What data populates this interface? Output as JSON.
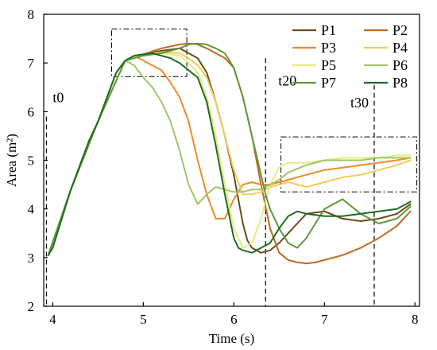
{
  "chart_data": {
    "type": "line",
    "xlabel": "Time (s)",
    "ylabel": "Area (m²)",
    "xlim": [
      3.9,
      8.05
    ],
    "ylim": [
      2,
      8
    ],
    "x_ticks": [
      4,
      5,
      6,
      7,
      8
    ],
    "y_ticks": [
      2,
      3,
      4,
      5,
      6,
      7,
      8
    ],
    "grid": false,
    "legend_position": "top-right",
    "series": [
      {
        "name": "P1",
        "color": "#6B4A1C",
        "x": [
          3.95,
          4.2,
          4.5,
          4.8,
          5.0,
          5.2,
          5.4,
          5.5,
          5.6,
          5.7,
          5.8,
          5.9,
          6.0,
          6.05,
          6.1,
          6.15,
          6.2,
          6.3,
          6.4,
          6.5,
          6.6,
          6.7,
          6.8,
          7.0,
          7.2,
          7.4,
          7.6,
          7.8,
          7.95
        ],
        "y": [
          3.05,
          4.4,
          5.8,
          7.05,
          7.18,
          7.25,
          7.3,
          7.2,
          7.1,
          6.8,
          6.2,
          5.5,
          4.7,
          4.2,
          3.7,
          3.35,
          3.2,
          3.1,
          3.15,
          3.3,
          3.5,
          3.7,
          3.9,
          3.95,
          3.8,
          3.75,
          3.8,
          3.9,
          4.1
        ]
      },
      {
        "name": "P2",
        "color": "#C06A20",
        "x": [
          3.95,
          4.2,
          4.5,
          4.8,
          5.0,
          5.2,
          5.4,
          5.5,
          5.6,
          5.7,
          5.8,
          5.9,
          6.0,
          6.1,
          6.2,
          6.3,
          6.4,
          6.5,
          6.6,
          6.7,
          6.8,
          6.9,
          7.0,
          7.2,
          7.4,
          7.6,
          7.8,
          7.95
        ],
        "y": [
          3.05,
          4.4,
          5.8,
          7.05,
          7.18,
          7.3,
          7.38,
          7.4,
          7.38,
          7.3,
          7.2,
          7.1,
          6.9,
          6.3,
          5.5,
          4.5,
          3.6,
          3.1,
          2.95,
          2.9,
          2.88,
          2.9,
          2.95,
          3.05,
          3.2,
          3.4,
          3.65,
          3.95
        ]
      },
      {
        "name": "P3",
        "color": "#F08A2A",
        "x": [
          3.95,
          4.2,
          4.5,
          4.8,
          4.9,
          5.0,
          5.1,
          5.2,
          5.3,
          5.4,
          5.5,
          5.6,
          5.7,
          5.8,
          5.9,
          6.0,
          6.1,
          6.2,
          6.3,
          6.4,
          6.5,
          6.6,
          6.7,
          6.8,
          7.0,
          7.2,
          7.4,
          7.6,
          7.8,
          7.95
        ],
        "y": [
          3.05,
          4.4,
          5.8,
          7.05,
          7.15,
          7.05,
          6.95,
          6.85,
          6.6,
          6.3,
          5.8,
          5.0,
          4.3,
          3.8,
          3.8,
          4.2,
          4.5,
          4.55,
          4.5,
          4.5,
          4.55,
          4.6,
          4.65,
          4.7,
          4.8,
          4.85,
          4.9,
          4.95,
          5.0,
          5.05
        ]
      },
      {
        "name": "P4",
        "color": "#F0CD5A",
        "x": [
          3.95,
          4.2,
          4.5,
          4.8,
          5.0,
          5.2,
          5.4,
          5.5,
          5.6,
          5.7,
          5.8,
          5.9,
          6.0,
          6.1,
          6.2,
          6.3,
          6.4,
          6.5,
          6.6,
          6.7,
          6.8,
          6.9,
          7.0,
          7.2,
          7.4,
          7.6,
          7.8,
          7.95
        ],
        "y": [
          3.05,
          4.4,
          5.8,
          7.05,
          7.18,
          7.22,
          7.2,
          7.1,
          6.95,
          6.7,
          6.2,
          5.5,
          4.8,
          4.3,
          4.3,
          4.35,
          4.45,
          4.5,
          4.55,
          4.5,
          4.45,
          4.5,
          4.55,
          4.65,
          4.7,
          4.8,
          4.9,
          5.0
        ]
      },
      {
        "name": "P5",
        "color": "#E7EA7E",
        "x": [
          3.95,
          4.2,
          4.5,
          4.8,
          5.0,
          5.2,
          5.4,
          5.5,
          5.6,
          5.7,
          5.8,
          5.9,
          6.0,
          6.1,
          6.2,
          6.3,
          6.4,
          6.5,
          6.6,
          6.7,
          6.8,
          7.0,
          7.2,
          7.4,
          7.6,
          7.8,
          7.95
        ],
        "y": [
          3.05,
          4.4,
          5.8,
          7.05,
          7.18,
          7.2,
          7.15,
          7.0,
          6.8,
          6.3,
          5.5,
          4.5,
          3.6,
          3.2,
          3.3,
          3.8,
          4.5,
          4.85,
          4.95,
          4.95,
          4.95,
          5.0,
          5.05,
          5.05,
          5.05,
          5.1,
          5.1
        ]
      },
      {
        "name": "P6",
        "color": "#A2C569",
        "x": [
          3.95,
          4.2,
          4.5,
          4.7,
          4.8,
          4.9,
          5.0,
          5.1,
          5.2,
          5.3,
          5.4,
          5.5,
          5.6,
          5.7,
          5.8,
          5.9,
          6.0,
          6.1,
          6.2,
          6.3,
          6.4,
          6.5,
          6.6,
          6.8,
          7.0,
          7.2,
          7.4,
          7.6,
          7.8,
          7.95
        ],
        "y": [
          3.05,
          4.4,
          5.8,
          6.8,
          7.05,
          6.95,
          6.7,
          6.5,
          6.2,
          5.8,
          5.2,
          4.5,
          4.1,
          4.3,
          4.45,
          4.4,
          4.35,
          4.35,
          4.4,
          4.4,
          4.5,
          4.6,
          4.75,
          4.9,
          5.0,
          5.0,
          5.0,
          5.05,
          5.05,
          5.05
        ]
      },
      {
        "name": "P7",
        "color": "#5E9A38",
        "x": [
          3.95,
          4.2,
          4.5,
          4.8,
          5.0,
          5.2,
          5.3,
          5.4,
          5.5,
          5.6,
          5.7,
          5.8,
          5.9,
          6.0,
          6.1,
          6.2,
          6.3,
          6.35,
          6.4,
          6.5,
          6.6,
          6.7,
          6.8,
          7.0,
          7.2,
          7.4,
          7.6,
          7.8,
          7.95
        ],
        "y": [
          3.05,
          4.4,
          5.8,
          7.05,
          7.15,
          7.2,
          7.25,
          7.3,
          7.38,
          7.4,
          7.38,
          7.3,
          7.2,
          6.9,
          6.3,
          5.5,
          4.7,
          4.3,
          4.0,
          3.6,
          3.3,
          3.2,
          3.4,
          4.0,
          4.2,
          3.9,
          3.7,
          3.8,
          4.05
        ]
      },
      {
        "name": "P8",
        "color": "#1F6B25",
        "x": [
          3.95,
          4.0,
          4.1,
          4.2,
          4.3,
          4.4,
          4.5,
          4.6,
          4.7,
          4.8,
          4.9,
          5.0,
          5.1,
          5.2,
          5.3,
          5.4,
          5.5,
          5.6,
          5.7,
          5.8,
          5.9,
          6.0,
          6.05,
          6.1,
          6.2,
          6.3,
          6.4,
          6.5,
          6.6,
          6.7,
          6.8,
          7.0,
          7.2,
          7.4,
          7.6,
          7.8,
          7.95
        ],
        "y": [
          3.05,
          3.2,
          3.8,
          4.4,
          4.9,
          5.4,
          5.8,
          6.3,
          6.8,
          7.05,
          7.15,
          7.18,
          7.2,
          7.15,
          7.1,
          7.0,
          6.85,
          6.7,
          6.2,
          5.3,
          4.3,
          3.4,
          3.2,
          3.15,
          3.1,
          3.2,
          3.3,
          3.6,
          3.85,
          3.95,
          3.9,
          3.85,
          3.85,
          3.9,
          3.95,
          4.0,
          4.15
        ]
      }
    ],
    "annotations": [
      {
        "label": "t0",
        "x": 3.93
      },
      {
        "label": "t20",
        "x": 6.35
      },
      {
        "label": "t30",
        "x": 7.55
      }
    ],
    "highlight_boxes": [
      {
        "x": [
          4.65,
          5.48
        ],
        "y": [
          6.72,
          7.7
        ]
      },
      {
        "x": [
          6.52,
          8.02
        ],
        "y": [
          4.35,
          5.48
        ]
      }
    ]
  }
}
